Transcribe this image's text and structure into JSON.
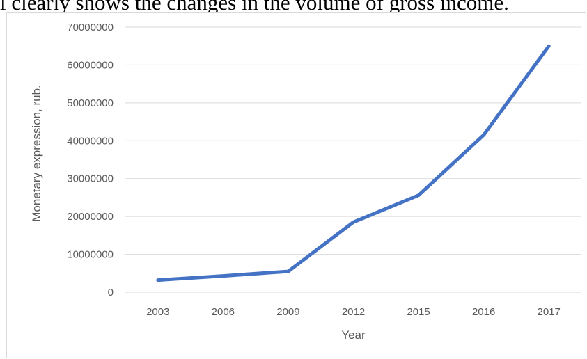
{
  "header_text": "l clearly shows the changes in the volume of gross income.",
  "chart_data": {
    "type": "line",
    "categories": [
      "2003",
      "2006",
      "2009",
      "2012",
      "2015",
      "2016",
      "2017"
    ],
    "series": [
      {
        "values": [
          3200000,
          4300000,
          5500000,
          18500000,
          25600000,
          41500000,
          65000000
        ]
      }
    ],
    "title": "",
    "xlabel": "Year",
    "ylabel": "Monetary expression, rub.",
    "ylim": [
      0,
      70000000
    ],
    "yticks": [
      "0",
      "10000000",
      "20000000",
      "30000000",
      "40000000",
      "50000000",
      "60000000",
      "70000000"
    ],
    "grid": true,
    "line_color": "#4472c4",
    "grid_color": "#d9d9d9",
    "legend": "none"
  }
}
